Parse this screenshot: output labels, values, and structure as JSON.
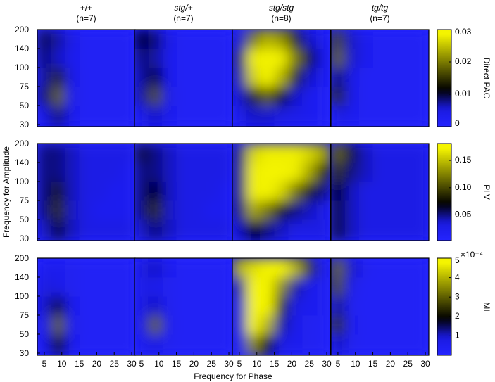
{
  "columns": [
    {
      "genotype": "+/+",
      "n": "(n=7)",
      "italic": false
    },
    {
      "genotype": "stg/+",
      "n": "(n=7)",
      "italic": true
    },
    {
      "genotype": "stg/stg",
      "n": "(n=8)",
      "italic": true
    },
    {
      "genotype": "tg/tg",
      "n": "(n=7)",
      "italic": true
    }
  ],
  "axes": {
    "xlabel": "Frequency for Phase",
    "ylabel": "Frequency for Amplitude",
    "xlim": [
      3,
      31
    ],
    "xticks": [
      5,
      10,
      15,
      20,
      25,
      30
    ],
    "xbins": [
      3,
      7,
      11,
      15,
      19,
      23,
      27,
      31
    ],
    "yticks": [
      30,
      50,
      75,
      100,
      140,
      200
    ],
    "colormap": [
      "#2424ff",
      "#1a1ae0",
      "#000000",
      "#f4f400"
    ]
  },
  "chart_data": [
    {
      "type": "heatmap",
      "colorbar_label": "Direct PAC",
      "clim": [
        0,
        0.03
      ],
      "cticks": [
        0,
        0.01,
        0.02,
        0.03
      ],
      "panels": [
        {
          "z": [
            [
              0.005,
              0.008,
              0.003,
              0.002,
              0.002,
              0.002,
              0.002
            ],
            [
              0.008,
              0.018,
              0.004,
              0.002,
              0.002,
              0.002,
              0.002
            ],
            [
              0.007,
              0.014,
              0.004,
              0.002,
              0.002,
              0.002,
              0.002
            ],
            [
              0.008,
              0.006,
              0.003,
              0.002,
              0.002,
              0.002,
              0.002
            ],
            [
              0.009,
              0.007,
              0.004,
              0.002,
              0.002,
              0.002,
              0.002
            ]
          ]
        },
        {
          "z": [
            [
              0.004,
              0.006,
              0.003,
              0.002,
              0.002,
              0.002,
              0.002
            ],
            [
              0.007,
              0.017,
              0.004,
              0.002,
              0.002,
              0.002,
              0.002
            ],
            [
              0.007,
              0.01,
              0.003,
              0.002,
              0.002,
              0.002,
              0.002
            ],
            [
              0.008,
              0.007,
              0.003,
              0.002,
              0.002,
              0.002,
              0.002
            ],
            [
              0.01,
              0.008,
              0.004,
              0.002,
              0.002,
              0.002,
              0.002
            ]
          ]
        },
        {
          "z": [
            [
              0.004,
              0.006,
              0.006,
              0.005,
              0.004,
              0.003,
              0.002
            ],
            [
              0.006,
              0.014,
              0.018,
              0.012,
              0.006,
              0.003,
              0.002
            ],
            [
              0.007,
              0.026,
              0.03,
              0.024,
              0.014,
              0.006,
              0.003
            ],
            [
              0.008,
              0.028,
              0.03,
              0.028,
              0.02,
              0.01,
              0.004
            ],
            [
              0.006,
              0.02,
              0.024,
              0.022,
              0.014,
              0.006,
              0.003
            ]
          ]
        },
        {
          "z": [
            [
              0.005,
              0.003,
              0.002,
              0.002,
              0.002,
              0.002,
              0.002
            ],
            [
              0.014,
              0.004,
              0.002,
              0.002,
              0.002,
              0.002,
              0.002
            ],
            [
              0.008,
              0.004,
              0.002,
              0.002,
              0.002,
              0.002,
              0.002
            ],
            [
              0.018,
              0.006,
              0.003,
              0.002,
              0.002,
              0.002,
              0.002
            ],
            [
              0.016,
              0.006,
              0.003,
              0.002,
              0.002,
              0.002,
              0.002
            ]
          ]
        }
      ]
    },
    {
      "type": "heatmap",
      "colorbar_label": "PLV",
      "clim": [
        0.003,
        0.181
      ],
      "cticks": [
        0.05,
        {
          "value": 0.1,
          "label": "0.10"
        },
        0.15
      ],
      "panels": [
        {
          "z": [
            [
              0.04,
              0.06,
              0.04,
              0.03,
              0.03,
              0.03,
              0.03
            ],
            [
              0.05,
              0.09,
              0.04,
              0.03,
              0.02,
              0.02,
              0.02
            ],
            [
              0.05,
              0.08,
              0.04,
              0.03,
              0.03,
              0.02,
              0.02
            ],
            [
              0.05,
              0.05,
              0.04,
              0.03,
              0.03,
              0.03,
              0.02
            ],
            [
              0.05,
              0.05,
              0.04,
              0.03,
              0.03,
              0.03,
              0.03
            ]
          ]
        },
        {
          "z": [
            [
              0.04,
              0.05,
              0.04,
              0.03,
              0.03,
              0.03,
              0.03
            ],
            [
              0.05,
              0.09,
              0.04,
              0.03,
              0.03,
              0.02,
              0.02
            ],
            [
              0.05,
              0.07,
              0.04,
              0.03,
              0.03,
              0.03,
              0.02
            ],
            [
              0.05,
              0.05,
              0.04,
              0.03,
              0.03,
              0.03,
              0.03
            ],
            [
              0.06,
              0.05,
              0.04,
              0.03,
              0.03,
              0.03,
              0.03
            ]
          ]
        },
        {
          "z": [
            [
              0.04,
              0.07,
              0.05,
              0.04,
              0.03,
              0.03,
              0.03
            ],
            [
              0.05,
              0.14,
              0.12,
              0.08,
              0.05,
              0.04,
              0.03
            ],
            [
              0.05,
              0.17,
              0.18,
              0.16,
              0.12,
              0.08,
              0.05
            ],
            [
              0.05,
              0.17,
              0.18,
              0.18,
              0.17,
              0.14,
              0.09
            ],
            [
              0.05,
              0.16,
              0.17,
              0.17,
              0.17,
              0.16,
              0.14
            ]
          ]
        },
        {
          "z": [
            [
              0.06,
              0.04,
              0.03,
              0.03,
              0.03,
              0.03,
              0.03
            ],
            [
              0.06,
              0.04,
              0.03,
              0.03,
              0.03,
              0.03,
              0.03
            ],
            [
              0.07,
              0.04,
              0.03,
              0.03,
              0.03,
              0.03,
              0.03
            ],
            [
              0.09,
              0.05,
              0.04,
              0.03,
              0.03,
              0.03,
              0.03
            ],
            [
              0.11,
              0.06,
              0.04,
              0.03,
              0.03,
              0.03,
              0.03
            ]
          ]
        }
      ]
    },
    {
      "type": "heatmap",
      "colorbar_label": "MI",
      "clim": [
        0,
        5
      ],
      "cticks": [
        1,
        2,
        3,
        4,
        5
      ],
      "cscale": "×10⁻⁴",
      "panels": [
        {
          "z": [
            [
              0.6,
              2.0,
              0.5,
              0.3,
              0.3,
              0.3,
              0.3
            ],
            [
              0.8,
              3.0,
              0.6,
              0.3,
              0.3,
              0.3,
              0.3
            ],
            [
              1.0,
              1.6,
              0.5,
              0.3,
              0.3,
              0.3,
              0.3
            ],
            [
              0.9,
              0.7,
              0.4,
              0.3,
              0.3,
              0.3,
              0.3
            ],
            [
              0.5,
              0.5,
              0.4,
              0.3,
              0.3,
              0.3,
              0.3
            ]
          ]
        },
        {
          "z": [
            [
              0.5,
              0.8,
              0.4,
              0.3,
              0.3,
              0.3,
              0.3
            ],
            [
              0.8,
              3.0,
              0.5,
              0.3,
              0.3,
              0.3,
              0.3
            ],
            [
              0.8,
              1.0,
              0.4,
              0.3,
              0.3,
              0.3,
              0.3
            ],
            [
              0.7,
              0.6,
              0.4,
              0.3,
              0.3,
              0.3,
              0.3
            ],
            [
              0.9,
              1.0,
              0.5,
              0.3,
              0.3,
              0.3,
              0.3
            ]
          ]
        },
        {
          "z": [
            [
              0.8,
              3.5,
              2.0,
              0.8,
              0.5,
              0.4,
              0.3
            ],
            [
              1.0,
              5,
              4,
              1.2,
              0.6,
              0.4,
              0.3
            ],
            [
              1.0,
              5,
              5,
              2.5,
              0.8,
              0.5,
              0.4
            ],
            [
              1.2,
              5,
              5,
              3.5,
              1.2,
              0.6,
              0.4
            ],
            [
              4,
              4.5,
              5,
              5,
              4,
              2.5,
              0.6
            ]
          ]
        },
        {
          "z": [
            [
              1.0,
              0.4,
              0.3,
              0.3,
              0.3,
              0.3,
              0.3
            ],
            [
              2.5,
              0.5,
              0.3,
              0.3,
              0.3,
              0.3,
              0.3
            ],
            [
              1.2,
              0.4,
              0.3,
              0.3,
              0.3,
              0.3,
              0.3
            ],
            [
              2.8,
              0.6,
              0.3,
              0.3,
              0.3,
              0.3,
              0.3
            ],
            [
              3,
              1,
              0.4,
              0.3,
              0.3,
              0.3,
              0.3
            ]
          ]
        }
      ]
    }
  ]
}
